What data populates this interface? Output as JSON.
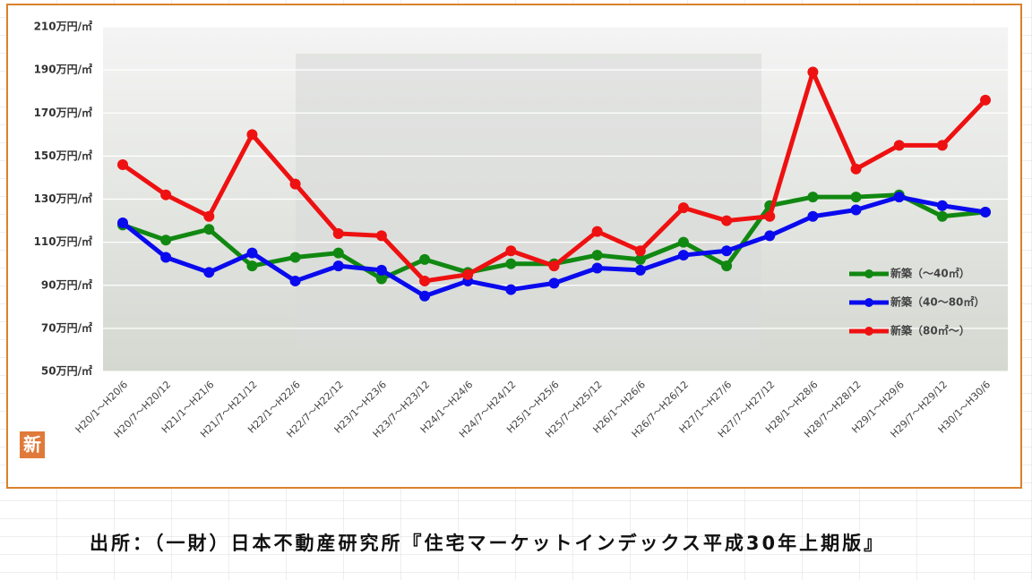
{
  "chart_data": {
    "type": "line",
    "categories": [
      "H20/1～H20/6",
      "H20/7～H20/12",
      "H21/1～H21/6",
      "H21/7～H21/12",
      "H22/1～H22/6",
      "H22/7～H22/12",
      "H23/1～H23/6",
      "H23/7～H23/12",
      "H24/1～H24/6",
      "H24/7～H24/12",
      "H25/1～H25/6",
      "H25/7～H25/12",
      "H26/1～H26/6",
      "H26/7～H26/12",
      "H27/1～H27/6",
      "H27/7～H27/12",
      "H28/1～H28/6",
      "H28/7～H28/12",
      "H29/1～H29/6",
      "H29/7～H29/12",
      "H30/1～H30/6"
    ],
    "series": [
      {
        "name": "新築（～40㎡）",
        "color": "#118811",
        "values": [
          118,
          111,
          116,
          99,
          103,
          105,
          93,
          102,
          96,
          100,
          100,
          104,
          102,
          110,
          99,
          127,
          131,
          131,
          132,
          122,
          124
        ]
      },
      {
        "name": "新築（40～80㎡）",
        "color": "#0a0aee",
        "values": [
          119,
          103,
          96,
          105,
          92,
          99,
          97,
          85,
          92,
          88,
          91,
          98,
          97,
          104,
          106,
          113,
          122,
          125,
          131,
          127,
          124
        ]
      },
      {
        "name": "新築（80㎡～）",
        "color": "#ee1111",
        "values": [
          146,
          132,
          122,
          160,
          137,
          114,
          113,
          92,
          95,
          106,
          99,
          115,
          106,
          126,
          120,
          122,
          189,
          144,
          155,
          155,
          176
        ]
      }
    ],
    "ylim": [
      50,
      210
    ],
    "yticks": [
      {
        "value": 50,
        "label": "50万円/㎡"
      },
      {
        "value": 70,
        "label": "70万円/㎡"
      },
      {
        "value": 90,
        "label": "90万円/㎡"
      },
      {
        "value": 110,
        "label": "110万円/㎡"
      },
      {
        "value": 130,
        "label": "130万円/㎡"
      },
      {
        "value": 150,
        "label": "150万円/㎡"
      },
      {
        "value": 170,
        "label": "170万円/㎡"
      },
      {
        "value": 190,
        "label": "190万円/㎡"
      },
      {
        "value": 210,
        "label": "210万円/㎡"
      }
    ],
    "grid": true,
    "legend": "right",
    "icon_label": "新",
    "source": "出所：（一財）日本不動産研究所『住宅マーケットインデックス平成30年上期版』"
  }
}
